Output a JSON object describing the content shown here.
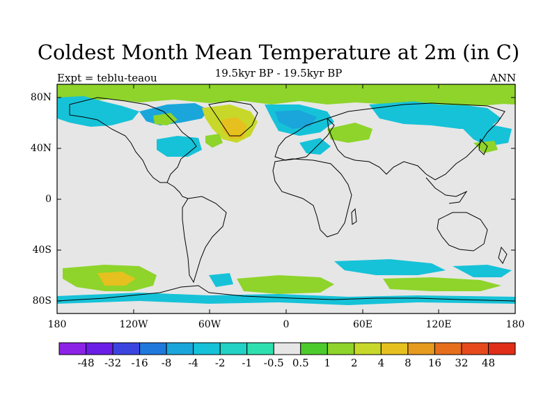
{
  "title": "Coldest Month Mean Temperature at 2m (in C)",
  "subtitle": "19.5kyr BP - 19.5kyr BP",
  "left_label": "Expt = teblu-teaou",
  "right_label": "ANN",
  "lat_ticks": [
    "80N",
    "40N",
    "0",
    "40S",
    "80S"
  ],
  "lon_ticks": [
    "180",
    "120W",
    "60W",
    "0",
    "60E",
    "120E",
    "180"
  ],
  "colorbar": {
    "labels": [
      "-48",
      "-32",
      "-16",
      "-8",
      "-4",
      "-2",
      "-1",
      "-0.5",
      "0.5",
      "1",
      "2",
      "4",
      "8",
      "16",
      "32",
      "48"
    ],
    "colors": [
      "#8c22e6",
      "#6a1ee6",
      "#3c44e0",
      "#1f78dc",
      "#1aa6da",
      "#16c2d8",
      "#22d2c4",
      "#2ee0b0",
      "#e6e6e6",
      "#4ccc2c",
      "#8ed42a",
      "#c8d82a",
      "#e6c01e",
      "#e69a1e",
      "#e66e1c",
      "#e64a1c",
      "#e02e18"
    ]
  }
}
